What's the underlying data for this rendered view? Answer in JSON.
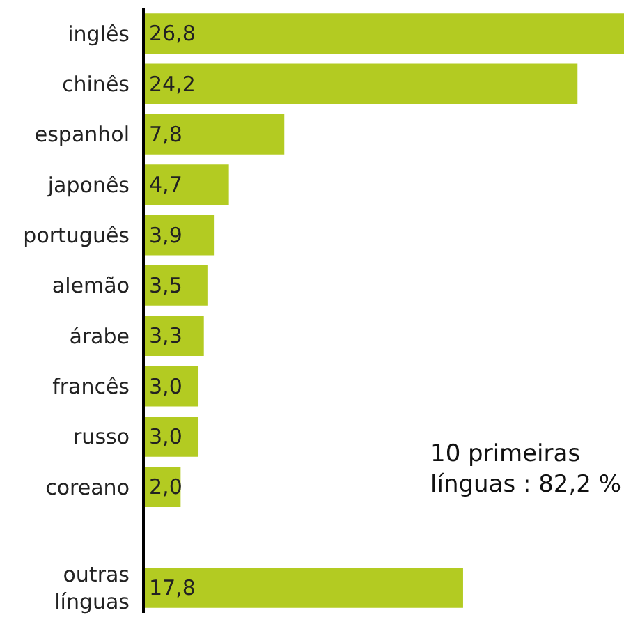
{
  "chart_data": {
    "type": "bar",
    "orientation": "horizontal",
    "categories": [
      "inglês",
      "chinês",
      "espanhol",
      "japonês",
      "português",
      "alemão",
      "árabe",
      "francês",
      "russo",
      "coreano",
      null,
      "outras línguas"
    ],
    "values": [
      26.8,
      24.2,
      7.8,
      4.7,
      3.9,
      3.5,
      3.3,
      3.0,
      3.0,
      2.0,
      null,
      17.8
    ],
    "value_labels": [
      "26,8",
      "24,2",
      "7,8",
      "4,7",
      "3,9",
      "3,5",
      "3,3",
      "3,0",
      "3,0",
      "2,0",
      null,
      "17,8"
    ],
    "color": "#b3cb22",
    "annotations": [
      "10 primeiras línguas : 82,2 %"
    ],
    "grid": false,
    "legend": false
  }
}
